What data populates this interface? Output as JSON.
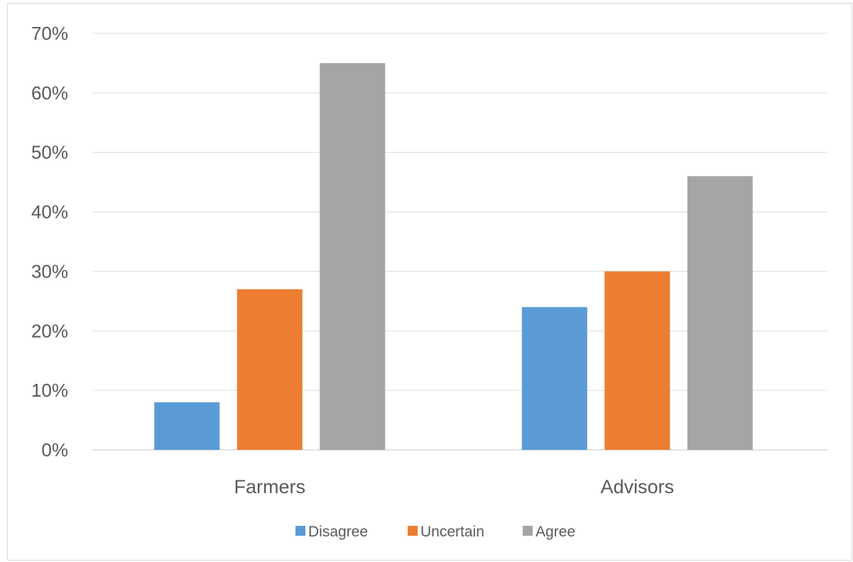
{
  "chart_data": {
    "type": "bar",
    "categories": [
      "Farmers",
      "Advisors"
    ],
    "series": [
      {
        "name": "Disagree",
        "values": [
          8,
          24
        ],
        "color": "#5b9bd5"
      },
      {
        "name": "Uncertain",
        "values": [
          27,
          30
        ],
        "color": "#ed7d31"
      },
      {
        "name": "Agree",
        "values": [
          65,
          46
        ],
        "color": "#a5a5a5"
      }
    ],
    "yticks": [
      "0%",
      "10%",
      "20%",
      "30%",
      "40%",
      "50%",
      "60%",
      "70%"
    ],
    "ylim": [
      0,
      70
    ],
    "value_unit": "%",
    "grid": true,
    "legend_position": "bottom",
    "title": "",
    "xlabel": "",
    "ylabel": ""
  }
}
